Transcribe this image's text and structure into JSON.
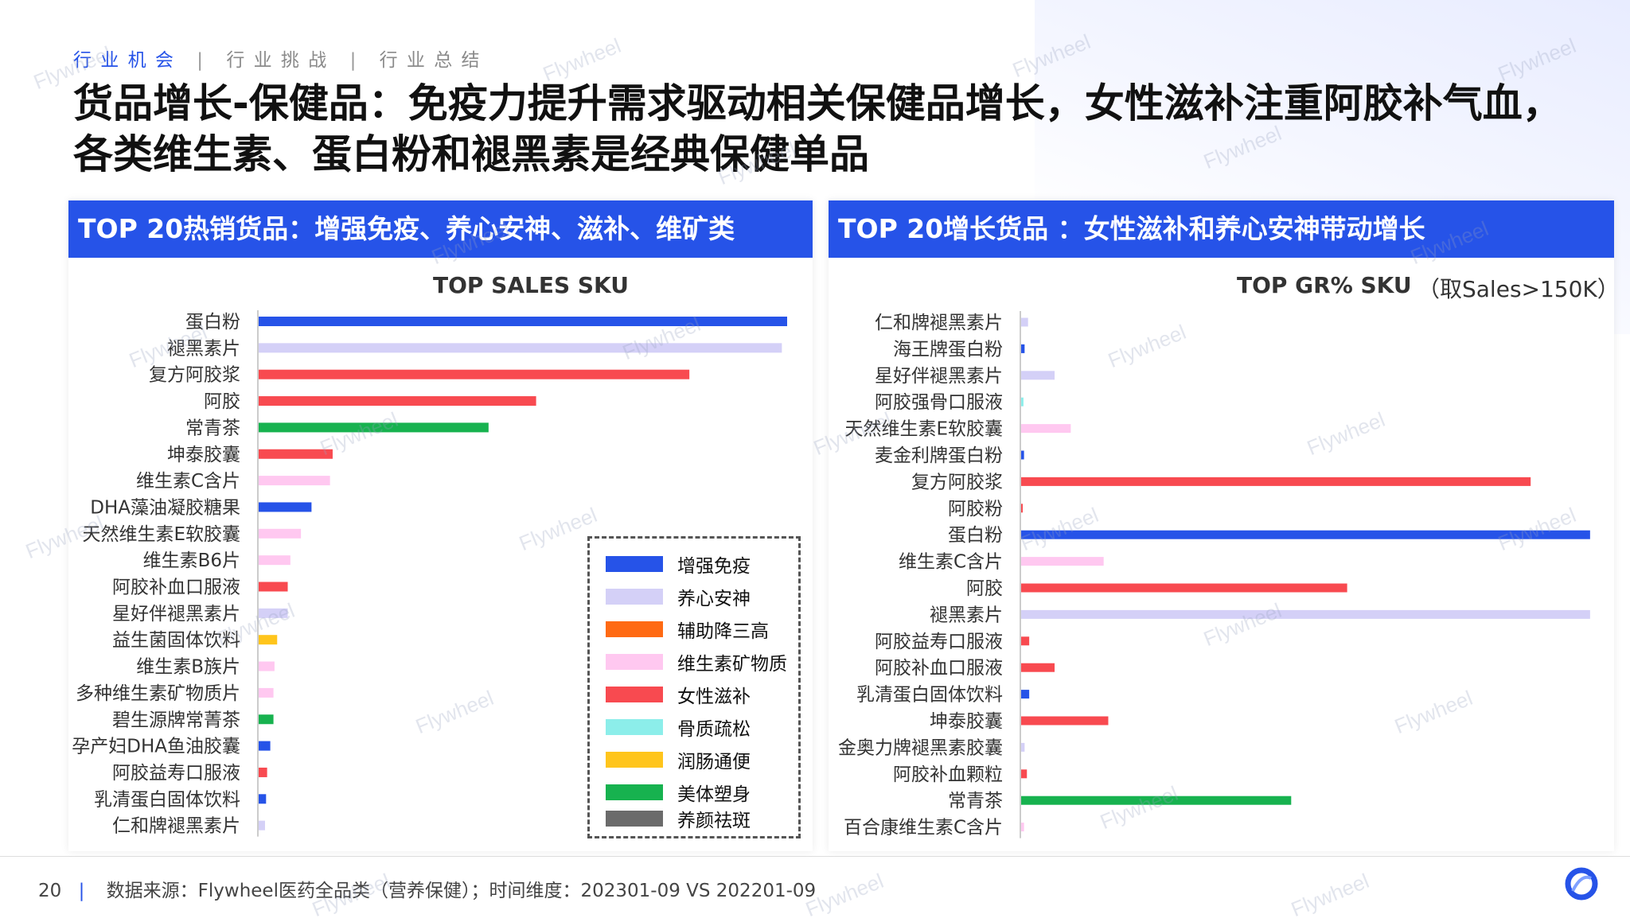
{
  "nav": {
    "items": [
      {
        "label": "行 业 机 会",
        "active": true
      },
      {
        "label": "行 业 挑 战",
        "active": false
      },
      {
        "label": "行 业 总 结",
        "active": false
      }
    ],
    "separator": "|"
  },
  "title": "货品增长-保健品：免疫力提升需求驱动相关保健品增长，女性滋补注重阿胶补气血，各类维生素、蛋白粉和褪黑素是经典保健单品",
  "colors": {
    "增强免疫": "#2653e8",
    "养心安神": "#d4d0f7",
    "辅助降三高": "#ff6a13",
    "维生素矿物质": "#ffc8f0",
    "女性滋补": "#f84a50",
    "骨质疏松": "#8ceeea",
    "润肠通便": "#ffc51c",
    "美体塑身": "#17b24f",
    "养颜祛斑": "#6b6b6b"
  },
  "left_panel": {
    "header": "TOP 20热销货品：增强免疫、养心安神、滋补、维矿类"
  },
  "right_panel": {
    "header": "TOP 20增长货品 ：女性滋补和养心安神带动增长",
    "note": "（取Sales>150K）"
  },
  "legend": {
    "items": [
      "增强免疫",
      "养心安神",
      "辅助降三高",
      "维生素矿物质",
      "女性滋补",
      "骨质疏松",
      "润肠通便",
      "美体塑身",
      "养颜祛斑"
    ]
  },
  "chart_data": [
    {
      "type": "bar",
      "orientation": "horizontal",
      "title": "TOP SALES SKU",
      "categories": [
        "蛋白粉",
        "褪黑素片",
        "复方阿胶浆",
        "阿胶",
        "常青茶",
        "坤泰胶囊",
        "维生素C含片",
        "DHA藻油凝胶糖果",
        "天然维生素E软胶囊",
        "维生素B6片",
        "阿胶补血口服液",
        "星好伴褪黑素片",
        "益生菌固体饮料",
        "维生素B族片",
        "多种维生素矿物质片",
        "碧生源牌常菁茶",
        "孕产妇DHA鱼油胶囊",
        "阿胶益寿口服液",
        "乳清蛋白固体饮料",
        "仁和牌褪黑素片"
      ],
      "values": [
        100,
        99,
        81.5,
        52.5,
        43.5,
        14,
        13.5,
        10,
        8,
        6,
        5.5,
        5.5,
        3.5,
        3,
        2.8,
        2.8,
        2.2,
        1.6,
        1.4,
        1.2
      ],
      "groups": [
        "增强免疫",
        "养心安神",
        "女性滋补",
        "女性滋补",
        "美体塑身",
        "女性滋补",
        "维生素矿物质",
        "增强免疫",
        "维生素矿物质",
        "维生素矿物质",
        "女性滋补",
        "养心安神",
        "润肠通便",
        "维生素矿物质",
        "维生素矿物质",
        "美体塑身",
        "增强免疫",
        "女性滋补",
        "增强免疫",
        "养心安神"
      ],
      "xlim": [
        0,
        100
      ],
      "grid": false
    },
    {
      "type": "bar",
      "orientation": "horizontal",
      "title": "TOP GR% SKU",
      "categories": [
        "仁和牌褪黑素片",
        "海王牌蛋白粉",
        "星好伴褪黑素片",
        "阿胶强骨口服液",
        "天然维生素E软胶囊",
        "麦金利牌蛋白粉",
        "复方阿胶浆",
        "阿胶粉",
        "蛋白粉",
        "维生素C含片",
        "阿胶",
        "褪黑素片",
        "阿胶益寿口服液",
        "阿胶补血口服液",
        "乳清蛋白固体饮料",
        "坤泰胶囊",
        "金奥力牌褪黑素胶囊",
        "阿胶补血颗粒",
        "常青茶",
        "百合康维生素C含片"
      ],
      "values": [
        1.2,
        0.6,
        5.8,
        0.4,
        8.6,
        0.5,
        88.3,
        0.2,
        98.6,
        14.3,
        56.5,
        98.6,
        1.4,
        5.8,
        1.4,
        15.1,
        0.6,
        1.0,
        46.8,
        0.5
      ],
      "groups": [
        "养心安神",
        "增强免疫",
        "养心安神",
        "骨质疏松",
        "维生素矿物质",
        "增强免疫",
        "女性滋补",
        "女性滋补",
        "增强免疫",
        "维生素矿物质",
        "女性滋补",
        "养心安神",
        "女性滋补",
        "女性滋补",
        "增强免疫",
        "女性滋补",
        "养心安神",
        "女性滋补",
        "美体塑身",
        "维生素矿物质"
      ],
      "xlim": [
        0,
        100
      ],
      "grid": false
    }
  ],
  "footer": {
    "page_number": "20",
    "separator": "|",
    "source": "数据来源：Flywheel医药全品类（营养保健）；时间维度：202301-09 VS 202201-09"
  },
  "watermark": "Flywheel"
}
